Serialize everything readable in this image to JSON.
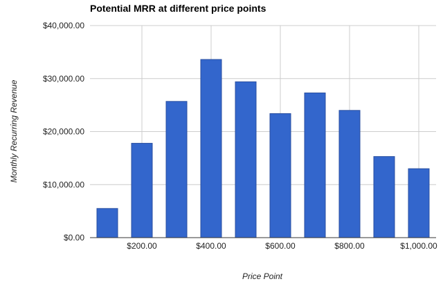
{
  "chart_data": {
    "type": "bar",
    "title": "Potential MRR at different price points",
    "xlabel": "Price Point",
    "ylabel": "Monthly Recurring Revenue",
    "x": [
      100,
      200,
      300,
      400,
      500,
      600,
      700,
      800,
      900,
      1000
    ],
    "values": [
      5500,
      17800,
      25700,
      33600,
      29400,
      23400,
      27300,
      24000,
      15300,
      13000
    ],
    "xlim": [
      50,
      1050
    ],
    "ylim": [
      0,
      40000
    ],
    "y_ticks": [
      "$0.00",
      "$10,000.00",
      "$20,000.00",
      "$30,000.00",
      "$40,000.00"
    ],
    "x_ticks": [
      "$200.00",
      "$400.00",
      "$600.00",
      "$800.00",
      "$1,000.00"
    ],
    "bar_color": "#3366cc",
    "bar_stroke": "#2a4fa0",
    "grid": true,
    "legend": "none"
  }
}
